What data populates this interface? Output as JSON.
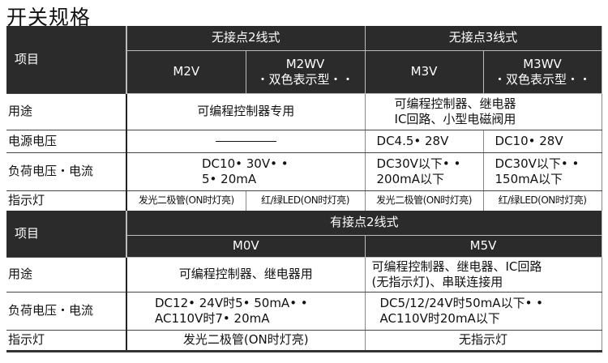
{
  "title": "开关规格",
  "table1": {
    "item_label": "项目",
    "groups": [
      "无接点2线式",
      "无接点3线式"
    ],
    "models": [
      {
        "name": "M2V",
        "note": ""
      },
      {
        "name": "M2WV",
        "note": "・双色表示型・・"
      },
      {
        "name": "M3V",
        "note": ""
      },
      {
        "name": "M3WV",
        "note": "・双色表示型・・"
      }
    ],
    "rows": {
      "usage": {
        "label": "用途",
        "m2": "可编程控制器专用",
        "m3_line1": "可编程控制器、继电器",
        "m3_line2": "IC回路、小型电磁阀用"
      },
      "supply": {
        "label": "电源电压",
        "m2": "",
        "m3v": "DC4.5• 28V",
        "m3wv": "DC10• 28V"
      },
      "load": {
        "label": "负荷电压・电流",
        "m2_line1": "DC10• 30V• •",
        "m2_line2": "5• 20mA",
        "m3v_line1": "DC30V以下• •",
        "m3v_line2": "200mA以下",
        "m3wv_line1": "DC30V以下• •",
        "m3wv_line2": "150mA以下"
      },
      "indicator": {
        "label": "指示灯",
        "m2v": "发光二极管(ON时灯亮)",
        "m2wv": "红/绿LED(ON时灯亮)",
        "m3v": "发光二极管(ON时灯亮)",
        "m3wv": "红/绿LED(ON时灯亮)"
      }
    }
  },
  "table2": {
    "item_label": "项目",
    "group": "有接点2线式",
    "models": [
      "M0V",
      "M5V"
    ],
    "rows": {
      "usage": {
        "label": "用途",
        "m0v": "可编程控制器、继电器用",
        "m5v_line1": "可编程控制器、继电器、IC回路",
        "m5v_line2": "(无指示灯)、串联连接用"
      },
      "load": {
        "label": "负荷电压・电流",
        "m0v_line1": "DC12• 24V时5• 50mA• •",
        "m0v_line2": "AC110V时7• 20mA",
        "m5v_line1": "DC5/12/24V时50mA以下• •",
        "m5v_line2": "AC110V时20mA以下"
      },
      "indicator": {
        "label": "指示灯",
        "m0v": "发光二极管(ON时灯亮)",
        "m5v": "无指示灯"
      }
    }
  }
}
